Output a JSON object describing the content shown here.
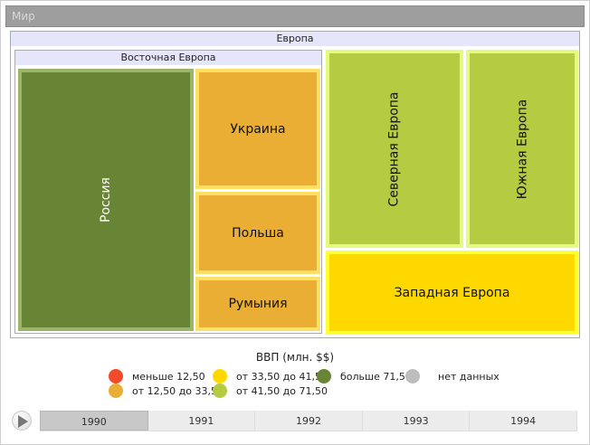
{
  "root": {
    "title": "Мир"
  },
  "europe": {
    "title": "Европа"
  },
  "eastern": {
    "title": "Восточная Европа"
  },
  "tiles": {
    "russia": "Россия",
    "ukraine": "Украина",
    "poland": "Польша",
    "romania": "Румыния",
    "northern": "Северная Европа",
    "southern": "Южная Европа",
    "western": "Западная Европа"
  },
  "legend": {
    "title": "ВВП (млн. $$)",
    "items": [
      {
        "label": "меньше 12,50",
        "color": "#f44a2c"
      },
      {
        "label": "от 12,50 до 33,50",
        "color": "#ebae35"
      },
      {
        "label": "от 33,50 до 41,50",
        "color": "#ffd800"
      },
      {
        "label": "от 41,50 до 71,50",
        "color": "#b5cb42"
      },
      {
        "label": "больше 71,50",
        "color": "#688535"
      },
      {
        "label": "нет данных",
        "color": "#bdbdbd"
      }
    ]
  },
  "timeline": {
    "years": [
      "1990",
      "1991",
      "1992",
      "1993",
      "1994"
    ],
    "selected": "1990"
  }
}
